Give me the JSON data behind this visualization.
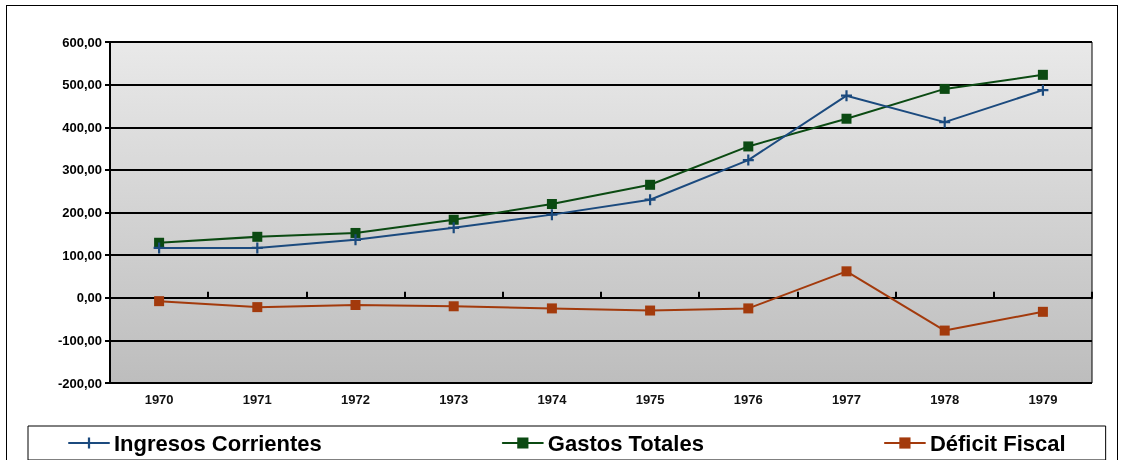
{
  "chart_data": {
    "type": "line",
    "categories": [
      "1970",
      "1971",
      "1972",
      "1973",
      "1974",
      "1975",
      "1976",
      "1977",
      "1978",
      "1979"
    ],
    "series": [
      {
        "name": "Ingresos Corrientes",
        "color": "#1b4a7e",
        "marker": "cross",
        "values": [
          117,
          117,
          136,
          164,
          195,
          230,
          323,
          474,
          412,
          487
        ]
      },
      {
        "name": "Gastos Totales",
        "color": "#0b4a12",
        "marker": "square",
        "values": [
          129,
          143,
          152,
          183,
          220,
          265,
          355,
          420,
          490,
          523
        ]
      },
      {
        "name": "Déficit Fiscal",
        "color": "#a33a0c",
        "marker": "square",
        "values": [
          -8,
          -22,
          -17,
          -20,
          -25,
          -30,
          -25,
          62,
          -77,
          -33
        ]
      }
    ],
    "ylim": [
      -200,
      600
    ],
    "yticks": [
      {
        "value": -200,
        "label": "-200,00"
      },
      {
        "value": -100,
        "label": "-100,00"
      },
      {
        "value": 0,
        "label": "0,00"
      },
      {
        "value": 100,
        "label": "100,00"
      },
      {
        "value": 200,
        "label": "200,00"
      },
      {
        "value": 300,
        "label": "300,00"
      },
      {
        "value": 400,
        "label": "400,00"
      },
      {
        "value": 500,
        "label": "500,00"
      },
      {
        "value": 600,
        "label": "600,00"
      }
    ],
    "grid": "y",
    "legend": "bottom",
    "line_style": "solid"
  }
}
